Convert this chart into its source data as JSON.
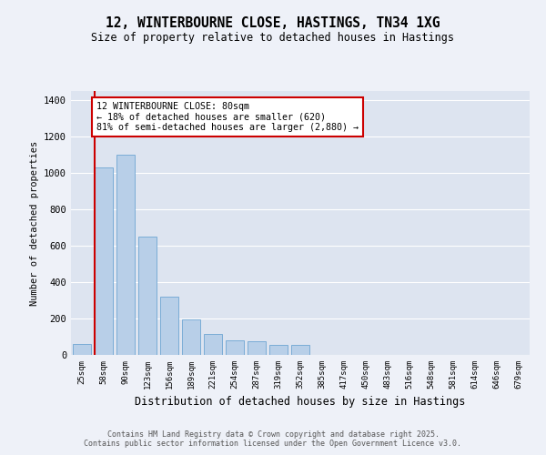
{
  "title1": "12, WINTERBOURNE CLOSE, HASTINGS, TN34 1XG",
  "title2": "Size of property relative to detached houses in Hastings",
  "xlabel": "Distribution of detached houses by size in Hastings",
  "ylabel": "Number of detached properties",
  "bin_labels": [
    "25sqm",
    "58sqm",
    "90sqm",
    "123sqm",
    "156sqm",
    "189sqm",
    "221sqm",
    "254sqm",
    "287sqm",
    "319sqm",
    "352sqm",
    "385sqm",
    "417sqm",
    "450sqm",
    "483sqm",
    "516sqm",
    "548sqm",
    "581sqm",
    "614sqm",
    "646sqm",
    "679sqm"
  ],
  "bar_heights": [
    60,
    1030,
    1100,
    650,
    320,
    195,
    115,
    80,
    75,
    55,
    55,
    0,
    0,
    0,
    0,
    0,
    0,
    0,
    0,
    0,
    0
  ],
  "bar_color": "#b8cfe8",
  "bar_edgecolor": "#7aacd6",
  "bg_color": "#dde4f0",
  "grid_color": "#ffffff",
  "vline_color": "#cc0000",
  "annotation_title": "12 WINTERBOURNE CLOSE: 80sqm",
  "annotation_line1": "← 18% of detached houses are smaller (620)",
  "annotation_line2": "81% of semi-detached houses are larger (2,880) →",
  "annotation_box_color": "#ffffff",
  "annotation_border_color": "#cc0000",
  "ylim": [
    0,
    1450
  ],
  "yticks": [
    0,
    200,
    400,
    600,
    800,
    1000,
    1200,
    1400
  ],
  "footer1": "Contains HM Land Registry data © Crown copyright and database right 2025.",
  "footer2": "Contains public sector information licensed under the Open Government Licence v3.0.",
  "fig_bg": "#eef1f8"
}
